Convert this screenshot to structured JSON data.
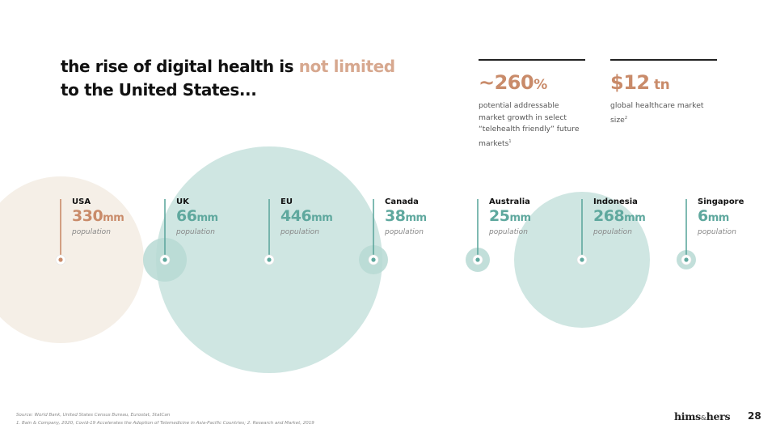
{
  "headline": {
    "part1": "the rise of digital health is ",
    "accent": "not limited",
    "part2": " to the United States..."
  },
  "stats": [
    {
      "value": "~260",
      "unit": "%",
      "desc": "potential addressable market growth in select “telehealth friendly” future markets",
      "footnote": "1"
    },
    {
      "value": "$12",
      "unit": " tn",
      "desc": "global healthcare market size",
      "footnote": "2"
    }
  ],
  "countries": [
    {
      "name": "USA",
      "value": "330",
      "unit": "mm",
      "label": "population",
      "population_mm": 330,
      "color": "#c98b6a"
    },
    {
      "name": "UK",
      "value": "66",
      "unit": "mm",
      "label": "population",
      "population_mm": 66,
      "color": "#5fa89e"
    },
    {
      "name": "EU",
      "value": "446",
      "unit": "mm",
      "label": "population",
      "population_mm": 446,
      "color": "#5fa89e"
    },
    {
      "name": "Canada",
      "value": "38",
      "unit": "mm",
      "label": "population",
      "population_mm": 38,
      "color": "#5fa89e"
    },
    {
      "name": "Australia",
      "value": "25",
      "unit": "mm",
      "label": "population",
      "population_mm": 25,
      "color": "#5fa89e"
    },
    {
      "name": "Indonesia",
      "value": "268",
      "unit": "mm",
      "label": "population",
      "population_mm": 268,
      "color": "#5fa89e"
    },
    {
      "name": "Singapore",
      "value": "6",
      "unit": "mm",
      "label": "population",
      "population_mm": 6,
      "color": "#5fa89e"
    }
  ],
  "colors": {
    "usa_fill": "#f5efe7",
    "teal_fill": "#cfe6e2",
    "teal_small": "#b7d9d4",
    "accent": "#c98b6a",
    "teal": "#5fa89e"
  },
  "footnotes": {
    "source": "Source: World Bank, United States Census Bureau, Eurostat, StatCan",
    "refs": "1. Bain & Company, 2020, Covid-19 Accelerates the Adoption of Telemedicine in Asia-Pacific Countries; 2. Research and Market, 2019"
  },
  "logo": {
    "left": "hims",
    "amp": "&",
    "right": "hers"
  },
  "page_number": "28"
}
